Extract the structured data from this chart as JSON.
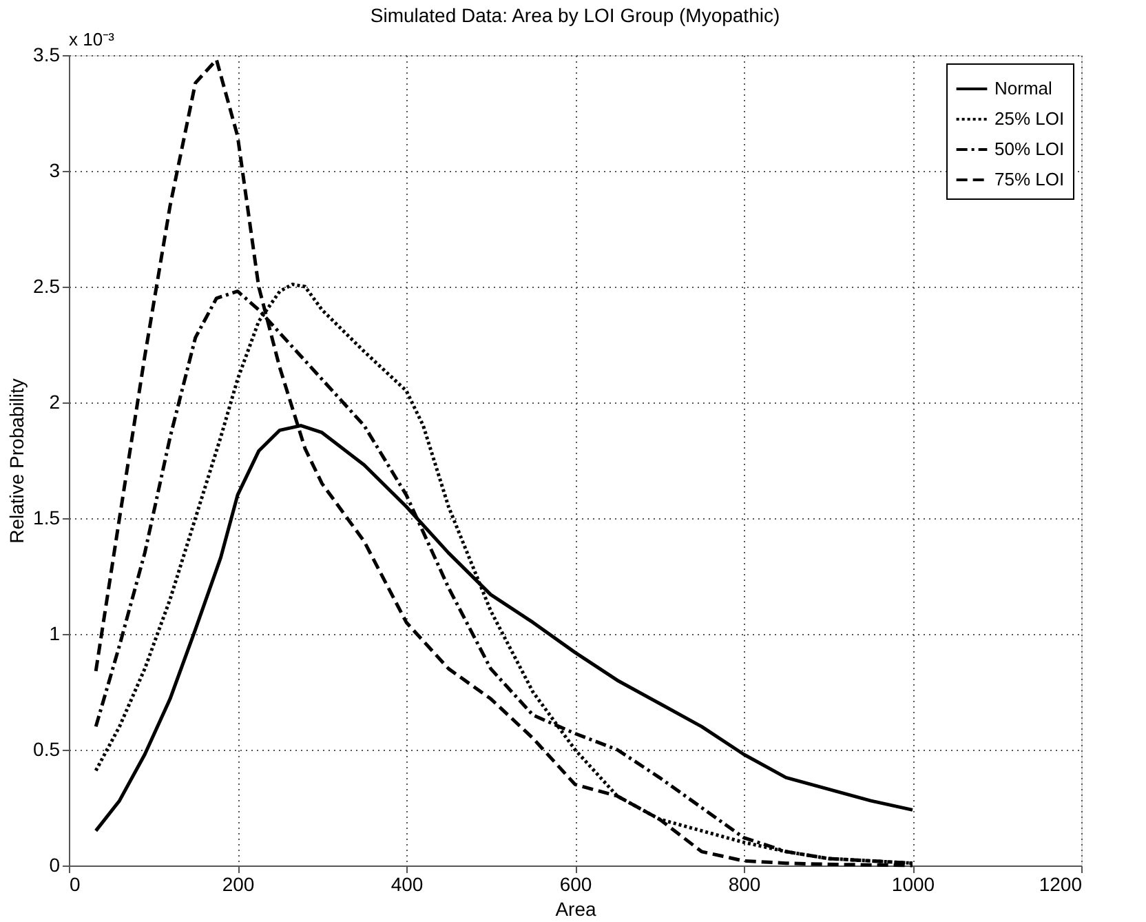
{
  "chart_data": {
    "type": "line",
    "title": "Simulated Data: Area by LOI Group (Myopathic)",
    "xlabel": "Area",
    "ylabel": "Relative Probability",
    "annotations": [
      "x 10⁻³"
    ],
    "xlim": [
      0,
      1200
    ],
    "xticks": [
      0,
      200,
      400,
      600,
      800,
      1000,
      1200
    ],
    "ylim": [
      0,
      3.5
    ],
    "yticks": [
      0,
      0.5,
      1,
      1.5,
      2,
      2.5,
      3,
      3.5
    ],
    "grid": true,
    "legend": "top right",
    "marker": "none",
    "series": [
      {
        "name": "Normal",
        "color": "#000000",
        "line_style": "solid",
        "x": [
          32,
          60,
          90,
          120,
          150,
          180,
          200,
          225,
          250,
          275,
          300,
          350,
          400,
          450,
          500,
          550,
          600,
          650,
          700,
          750,
          800,
          850,
          900,
          950,
          1000
        ],
        "values": [
          0.15,
          0.28,
          0.48,
          0.72,
          1.02,
          1.33,
          1.6,
          1.79,
          1.88,
          1.9,
          1.87,
          1.73,
          1.55,
          1.35,
          1.17,
          1.05,
          0.92,
          0.8,
          0.7,
          0.6,
          0.48,
          0.38,
          0.33,
          0.28,
          0.24
        ]
      },
      {
        "name": "25% LOI",
        "color": "#000000",
        "line_style": "dotted",
        "x": [
          32,
          60,
          90,
          120,
          150,
          180,
          200,
          225,
          250,
          265,
          280,
          300,
          350,
          400,
          420,
          450,
          500,
          550,
          600,
          650,
          700,
          750,
          800,
          850,
          900,
          1000
        ],
        "values": [
          0.41,
          0.6,
          0.85,
          1.15,
          1.5,
          1.85,
          2.1,
          2.35,
          2.48,
          2.51,
          2.5,
          2.4,
          2.22,
          2.05,
          1.9,
          1.55,
          1.1,
          0.75,
          0.5,
          0.3,
          0.2,
          0.15,
          0.1,
          0.06,
          0.03,
          0.01
        ]
      },
      {
        "name": "50% LOI",
        "color": "#000000",
        "line_style": "dashdot",
        "x": [
          32,
          60,
          90,
          120,
          150,
          175,
          200,
          225,
          250,
          300,
          350,
          400,
          450,
          500,
          550,
          600,
          650,
          700,
          750,
          800,
          850,
          900,
          1000
        ],
        "values": [
          0.6,
          0.95,
          1.35,
          1.85,
          2.28,
          2.45,
          2.48,
          2.4,
          2.3,
          2.1,
          1.9,
          1.6,
          1.2,
          0.85,
          0.65,
          0.57,
          0.5,
          0.38,
          0.25,
          0.12,
          0.06,
          0.03,
          0.01
        ]
      },
      {
        "name": "75% LOI",
        "color": "#000000",
        "line_style": "dashed",
        "x": [
          32,
          60,
          90,
          120,
          150,
          175,
          200,
          225,
          250,
          280,
          300,
          350,
          400,
          450,
          500,
          550,
          600,
          650,
          700,
          750,
          800,
          850,
          900,
          1000
        ],
        "values": [
          0.84,
          1.5,
          2.2,
          2.85,
          3.38,
          3.48,
          3.15,
          2.5,
          2.15,
          1.8,
          1.65,
          1.4,
          1.05,
          0.85,
          0.72,
          0.55,
          0.35,
          0.3,
          0.2,
          0.06,
          0.02,
          0.01,
          0.005,
          0.0
        ]
      }
    ]
  }
}
